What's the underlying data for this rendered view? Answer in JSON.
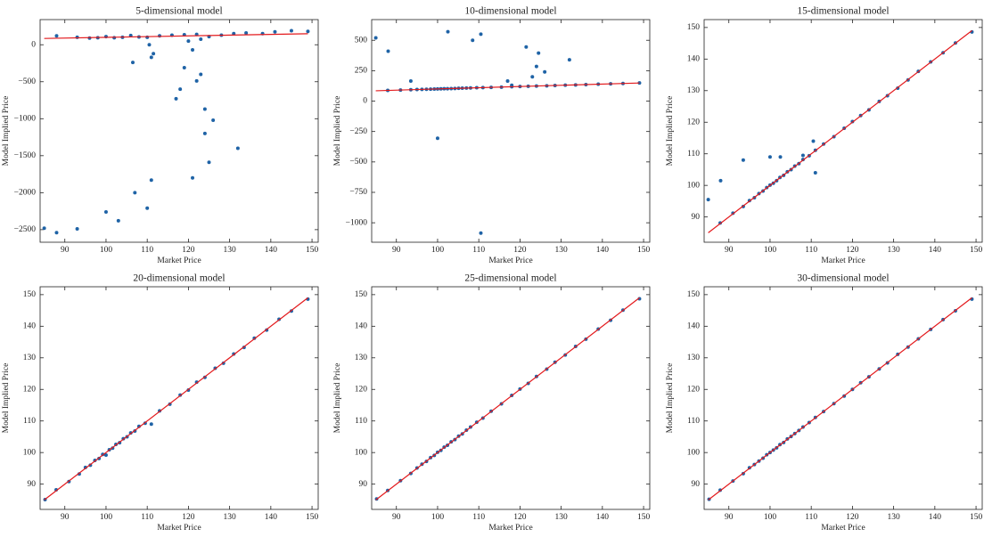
{
  "chart_data": [
    {
      "type": "scatter",
      "title": "5-dimensional model",
      "xlabel": "Market Price",
      "ylabel": "Model Implied Price",
      "xlim": [
        84,
        151.5
      ],
      "ylim": [
        -2670,
        340
      ],
      "xticks": [
        90,
        100,
        110,
        120,
        130,
        140,
        150
      ],
      "yticks": [
        0,
        {
          "value": -500,
          "label": "−500"
        },
        {
          "value": -1000,
          "label": "−1000"
        },
        {
          "value": -1500,
          "label": "−1500"
        },
        {
          "value": -2000,
          "label": "−2000"
        },
        {
          "value": -2500,
          "label": "−2500"
        }
      ],
      "series": [
        {
          "type": "scatter",
          "color": "#1f63a6",
          "x": [
            88,
            93,
            96,
            98,
            100,
            102,
            104,
            106,
            108,
            110,
            113,
            116,
            119,
            122,
            125,
            128,
            131,
            134,
            138,
            141,
            145,
            149,
            85,
            88,
            93,
            100,
            103,
            107,
            110,
            111,
            121,
            126,
            124,
            125,
            132,
            122,
            123,
            118,
            117,
            119,
            106.5,
            111,
            111.5,
            110.5,
            120,
            121,
            124,
            123
          ],
          "values": [
            120,
            100,
            90,
            95,
            110,
            95,
            100,
            125,
            105,
            100,
            120,
            130,
            135,
            140,
            110,
            130,
            150,
            160,
            150,
            175,
            190,
            180,
            -2480,
            -2540,
            -2490,
            -2260,
            -2380,
            -2000,
            -2210,
            -1830,
            -1800,
            -1020,
            -1200,
            -1590,
            -1400,
            -490,
            -400,
            -600,
            -730,
            -310,
            -240,
            -170,
            -120,
            0,
            50,
            -70,
            -870,
            75
          ]
        },
        {
          "type": "line",
          "color": "#e3191c",
          "x": [
            85,
            149
          ],
          "values": [
            85,
            149
          ]
        }
      ]
    },
    {
      "type": "scatter",
      "title": "10-dimensional model",
      "xlabel": "Market Price",
      "ylabel": "Model Implied Price",
      "xlim": [
        84,
        151.5
      ],
      "ylim": [
        -1160,
        670
      ],
      "xticks": [
        90,
        100,
        110,
        120,
        130,
        140,
        150
      ],
      "yticks": [
        500,
        250,
        0,
        {
          "value": -250,
          "label": "−250"
        },
        {
          "value": -500,
          "label": "−500"
        },
        {
          "value": -750,
          "label": "−750"
        },
        {
          "value": -1000,
          "label": "−1000"
        }
      ],
      "series": [
        {
          "type": "scatter",
          "color": "#1f63a6",
          "x": [
            87.9,
            91,
            93.5,
            95,
            96.2,
            97.3,
            98.3,
            99.2,
            100,
            100.8,
            101.6,
            102.4,
            103.3,
            104.2,
            105.1,
            106,
            107,
            108,
            109.5,
            111,
            113,
            115.5,
            118,
            120,
            122,
            124,
            126.5,
            128.5,
            131,
            133.5,
            136,
            139,
            142,
            145,
            149,
            85,
            88,
            93.5,
            102.5,
            108.5,
            110.5,
            121.5,
            124.5,
            124,
            126,
            123,
            117,
            118,
            132,
            100,
            110.5
          ],
          "values": [
            88,
            91,
            94,
            95,
            96,
            97,
            98,
            99,
            100,
            101,
            102,
            102,
            103,
            104,
            105,
            106,
            107,
            108,
            110,
            111,
            113,
            115,
            118,
            120,
            122,
            124,
            126,
            128,
            131,
            133,
            136,
            139,
            142,
            145,
            149,
            520,
            410,
            165,
            570,
            500,
            550,
            445,
            395,
            285,
            240,
            200,
            165,
            130,
            340,
            -305,
            -1085
          ]
        },
        {
          "type": "line",
          "color": "#e3191c",
          "x": [
            85,
            149
          ],
          "values": [
            85,
            149
          ]
        }
      ]
    },
    {
      "type": "scatter",
      "title": "15-dimensional model",
      "xlabel": "Market Price",
      "ylabel": "Model Implied Price",
      "xlim": [
        84,
        151.5
      ],
      "ylim": [
        82,
        152.5
      ],
      "xticks": [
        90,
        100,
        110,
        120,
        130,
        140,
        150
      ],
      "yticks": [
        90,
        100,
        110,
        120,
        130,
        140,
        150
      ],
      "series": [
        {
          "type": "scatter",
          "color": "#1f63a6",
          "x": [
            87.9,
            91,
            93.5,
            95,
            96.2,
            97.3,
            98.3,
            99.2,
            100,
            100.8,
            101.6,
            102.4,
            103.3,
            104.2,
            105.1,
            106,
            107,
            108,
            109.5,
            111,
            113,
            115.5,
            118,
            120,
            122,
            124,
            126.5,
            128.5,
            131,
            133.5,
            136,
            139,
            142,
            145,
            149,
            85,
            88,
            93.5,
            100,
            102.5,
            108,
            110.5,
            111
          ],
          "values": [
            88.1,
            91.2,
            93.3,
            95.2,
            96.1,
            97.4,
            98.2,
            99.3,
            100.1,
            100.7,
            101.5,
            102.5,
            103.2,
            104.3,
            105.0,
            106.1,
            106.9,
            108.2,
            109.4,
            111.1,
            113.1,
            115.4,
            118.1,
            120.2,
            122.1,
            123.9,
            126.6,
            128.4,
            130.8,
            133.4,
            136.1,
            139.1,
            142.0,
            145.1,
            148.6,
            95.5,
            101.5,
            108,
            109,
            109,
            109.5,
            114,
            104
          ]
        },
        {
          "type": "line",
          "color": "#e3191c",
          "x": [
            85,
            149
          ],
          "values": [
            85,
            149
          ]
        }
      ]
    },
    {
      "type": "scatter",
      "title": "20-dimensional model",
      "xlabel": "Market Price",
      "ylabel": "Model Implied Price",
      "xlim": [
        84,
        151.5
      ],
      "ylim": [
        82,
        152.5
      ],
      "xticks": [
        90,
        100,
        110,
        120,
        130,
        140,
        150
      ],
      "yticks": [
        90,
        100,
        110,
        120,
        130,
        140,
        150
      ],
      "series": [
        {
          "type": "scatter",
          "color": "#1f63a6",
          "x": [
            85.2,
            87.9,
            91,
            93.5,
            95,
            96.2,
            97.3,
            98.3,
            99.2,
            100,
            100.8,
            101.6,
            102.4,
            103.3,
            104.2,
            105.1,
            106,
            107,
            108,
            109.5,
            111,
            113,
            115.5,
            118,
            120,
            122,
            124,
            126.5,
            128.5,
            131,
            133.5,
            136,
            139,
            142,
            145,
            149
          ],
          "values": [
            85.1,
            88.2,
            90.8,
            93.2,
            95.3,
            96.0,
            97.5,
            98.1,
            99.4,
            99.2,
            100.9,
            101.4,
            102.6,
            103.1,
            104.4,
            105.0,
            106.2,
            106.8,
            108.3,
            109.3,
            109,
            113.2,
            115.3,
            118.2,
            119.8,
            122.3,
            123.8,
            126.7,
            128.3,
            131.2,
            133.3,
            136.2,
            138.8,
            142.2,
            144.8,
            148.6
          ]
        },
        {
          "type": "line",
          "color": "#e3191c",
          "x": [
            85,
            149
          ],
          "values": [
            85,
            149
          ]
        }
      ]
    },
    {
      "type": "scatter",
      "title": "25-dimensional model",
      "xlabel": "Market Price",
      "ylabel": "Model Implied Price",
      "xlim": [
        84,
        151.5
      ],
      "ylim": [
        82,
        152.5
      ],
      "xticks": [
        90,
        100,
        110,
        120,
        130,
        140,
        150
      ],
      "yticks": [
        90,
        100,
        110,
        120,
        130,
        140,
        150
      ],
      "series": [
        {
          "type": "scatter",
          "color": "#1f63a6",
          "x": [
            85.2,
            87.9,
            91,
            93.5,
            95,
            96.2,
            97.3,
            98.3,
            99.2,
            100,
            100.8,
            101.6,
            102.4,
            103.3,
            104.2,
            105.1,
            106,
            107,
            108,
            109.5,
            111,
            113,
            115.5,
            118,
            120,
            122,
            124,
            126.5,
            128.5,
            131,
            133.5,
            136,
            139,
            142,
            145,
            149
          ],
          "values": [
            85.3,
            88.0,
            91.1,
            93.4,
            95.1,
            96.3,
            97.2,
            98.4,
            99.1,
            100.1,
            100.7,
            101.7,
            102.3,
            103.4,
            104.1,
            105.2,
            105.9,
            107.1,
            108.1,
            109.6,
            110.9,
            113.1,
            115.4,
            118.1,
            120.1,
            121.9,
            124.1,
            126.4,
            128.6,
            130.9,
            133.6,
            135.9,
            139.1,
            141.9,
            145.1,
            148.7
          ]
        },
        {
          "type": "line",
          "color": "#e3191c",
          "x": [
            85,
            149
          ],
          "values": [
            85,
            149
          ]
        }
      ]
    },
    {
      "type": "scatter",
      "title": "30-dimensional model",
      "xlabel": "Market Price",
      "ylabel": "Model Implied Price",
      "xlim": [
        84,
        151.5
      ],
      "ylim": [
        82,
        152.5
      ],
      "xticks": [
        90,
        100,
        110,
        120,
        130,
        140,
        150
      ],
      "yticks": [
        90,
        100,
        110,
        120,
        130,
        140,
        150
      ],
      "series": [
        {
          "type": "scatter",
          "color": "#1f63a6",
          "x": [
            85.2,
            87.9,
            91,
            93.5,
            95,
            96.2,
            97.3,
            98.3,
            99.2,
            100,
            100.8,
            101.6,
            102.4,
            103.3,
            104.2,
            105.1,
            106,
            107,
            108,
            109.5,
            111,
            113,
            115.5,
            118,
            120,
            122,
            124,
            126.5,
            128.5,
            131,
            133.5,
            136,
            139,
            142,
            145,
            149
          ],
          "values": [
            85.2,
            88.1,
            91.0,
            93.3,
            95.2,
            96.2,
            97.3,
            98.2,
            99.3,
            100.0,
            100.8,
            101.5,
            102.5,
            103.2,
            104.3,
            105.1,
            106.0,
            107.0,
            108.1,
            109.5,
            111.1,
            113.0,
            115.5,
            117.9,
            120.0,
            122.1,
            124.0,
            126.5,
            128.4,
            131.1,
            133.4,
            136.0,
            139.0,
            142.1,
            144.9,
            148.6
          ]
        },
        {
          "type": "line",
          "color": "#e3191c",
          "x": [
            85,
            149
          ],
          "values": [
            85,
            149
          ]
        }
      ]
    }
  ]
}
